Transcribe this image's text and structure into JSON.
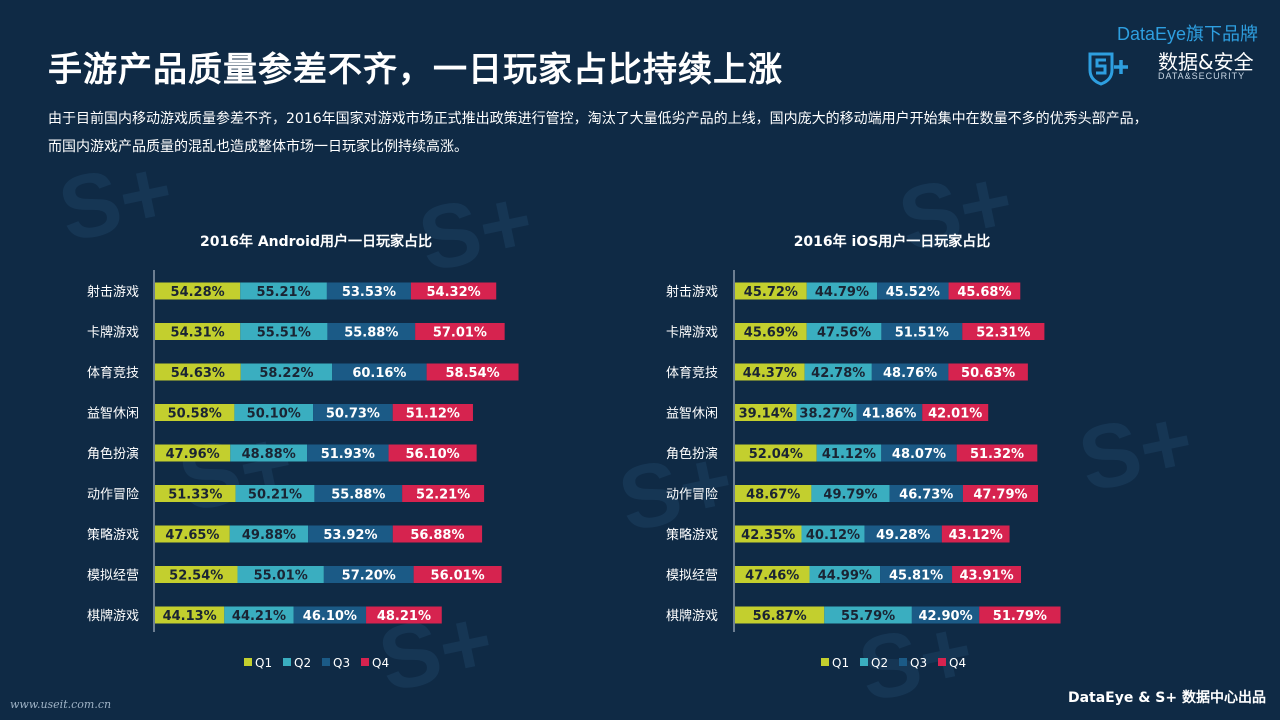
{
  "header": {
    "title": "手游产品质量参差不齐，一日玩家占比持续上涨",
    "description": "由于目前国内移动游戏质量参差不齐，2016年国家对游戏市场正式推出政策进行管控，淘汰了大量低劣产品的上线，国内庞大的移动端用户开始集中在数量不多的优秀头部产品，而国内游戏产品质量的混乱也造成整体市场一日玩家比例持续高涨。"
  },
  "brand": {
    "top_label": "DataEye旗下品牌",
    "logo_cn": "数据&安全",
    "logo_en": "DATA&SECURITY",
    "logo_icon": "shield-s-plus-icon"
  },
  "footer": {
    "left": "www.useit.com.cn",
    "right": "DataEye & S+ 数据中心出品"
  },
  "colors": {
    "background": "#0f2a45",
    "Q1": "#c3cf2e",
    "Q2": "#3aaec0",
    "Q3": "#1b5a86",
    "Q4": "#d6234f"
  },
  "chart_data": [
    {
      "type": "bar",
      "orientation": "horizontal-stacked",
      "title": "2016年 Android用户一日玩家占比",
      "categories": [
        "射击游戏",
        "卡牌游戏",
        "体育竞技",
        "益智休闲",
        "角色扮演",
        "动作冒险",
        "策略游戏",
        "模拟经营",
        "棋牌游戏"
      ],
      "series": [
        {
          "name": "Q1",
          "values": [
            54.28,
            54.31,
            54.63,
            50.58,
            47.96,
            51.33,
            47.65,
            52.54,
            44.13
          ]
        },
        {
          "name": "Q2",
          "values": [
            55.21,
            55.51,
            58.22,
            50.1,
            48.88,
            50.21,
            49.88,
            55.01,
            44.21
          ]
        },
        {
          "name": "Q3",
          "values": [
            53.53,
            55.88,
            60.16,
            50.73,
            51.93,
            55.88,
            53.92,
            57.2,
            46.1
          ]
        },
        {
          "name": "Q4",
          "values": [
            54.32,
            57.01,
            58.54,
            51.12,
            56.1,
            52.21,
            56.88,
            56.01,
            48.21
          ]
        }
      ],
      "labels": [
        [
          "54.28%",
          "55.21%",
          "53.53%",
          "54.32%"
        ],
        [
          "54.31%",
          "55.51%",
          "55.88%",
          "57.01%"
        ],
        [
          "54.63%",
          "58.22%",
          "60.16%",
          "58.54%"
        ],
        [
          "50.58%",
          "50.10%",
          "50.73%",
          "51.12%"
        ],
        [
          "47.96%",
          "48.88%",
          "51.93%",
          "56.10%"
        ],
        [
          "51.33%",
          "50.21%",
          "55.88%",
          "52.21%"
        ],
        [
          "47.65%",
          "49.88%",
          "53.92%",
          "56.88%"
        ],
        [
          "52.54%",
          "55.01%",
          "57.20%",
          "56.01%"
        ],
        [
          "44.13%",
          "44.21%",
          "46.10%",
          "48.21%"
        ]
      ],
      "legend_position": "bottom-center"
    },
    {
      "type": "bar",
      "orientation": "horizontal-stacked",
      "title": "2016年 iOS用户一日玩家占比",
      "categories": [
        "射击游戏",
        "卡牌游戏",
        "体育竞技",
        "益智休闲",
        "角色扮演",
        "动作冒险",
        "策略游戏",
        "模拟经营",
        "棋牌游戏"
      ],
      "series": [
        {
          "name": "Q1",
          "values": [
            45.72,
            45.69,
            44.37,
            39.14,
            52.04,
            48.67,
            42.35,
            47.46,
            56.87
          ]
        },
        {
          "name": "Q2",
          "values": [
            44.79,
            47.56,
            42.78,
            38.27,
            41.12,
            49.79,
            40.12,
            44.99,
            55.79
          ]
        },
        {
          "name": "Q3",
          "values": [
            45.52,
            51.51,
            48.76,
            41.86,
            48.07,
            46.73,
            49.28,
            45.81,
            42.9
          ]
        },
        {
          "name": "Q4",
          "values": [
            45.68,
            52.31,
            50.63,
            42.01,
            51.32,
            47.79,
            43.12,
            43.91,
            51.79
          ]
        }
      ],
      "labels": [
        [
          "45.72%",
          "44.79%",
          "45.52%",
          "45.68%"
        ],
        [
          "45.69%",
          "47.56%",
          "51.51%",
          "52.31%"
        ],
        [
          "44.37%",
          "42.78%",
          "48.76%",
          "50.63%"
        ],
        [
          "39.14%",
          "38.27%",
          "41.86%",
          "42.01%"
        ],
        [
          "52.04%",
          "41.12%",
          "48.07%",
          "51.32%"
        ],
        [
          "48.67%",
          "49.79%",
          "46.73%",
          "47.79%"
        ],
        [
          "42.35%",
          "40.12%",
          "49.28%",
          "43.12%"
        ],
        [
          "47.46%",
          "44.99%",
          "45.81%",
          "43.91%"
        ],
        [
          "56.87%",
          "55.79%",
          "42.90%",
          "51.79%"
        ]
      ],
      "legend_position": "bottom-center"
    }
  ]
}
